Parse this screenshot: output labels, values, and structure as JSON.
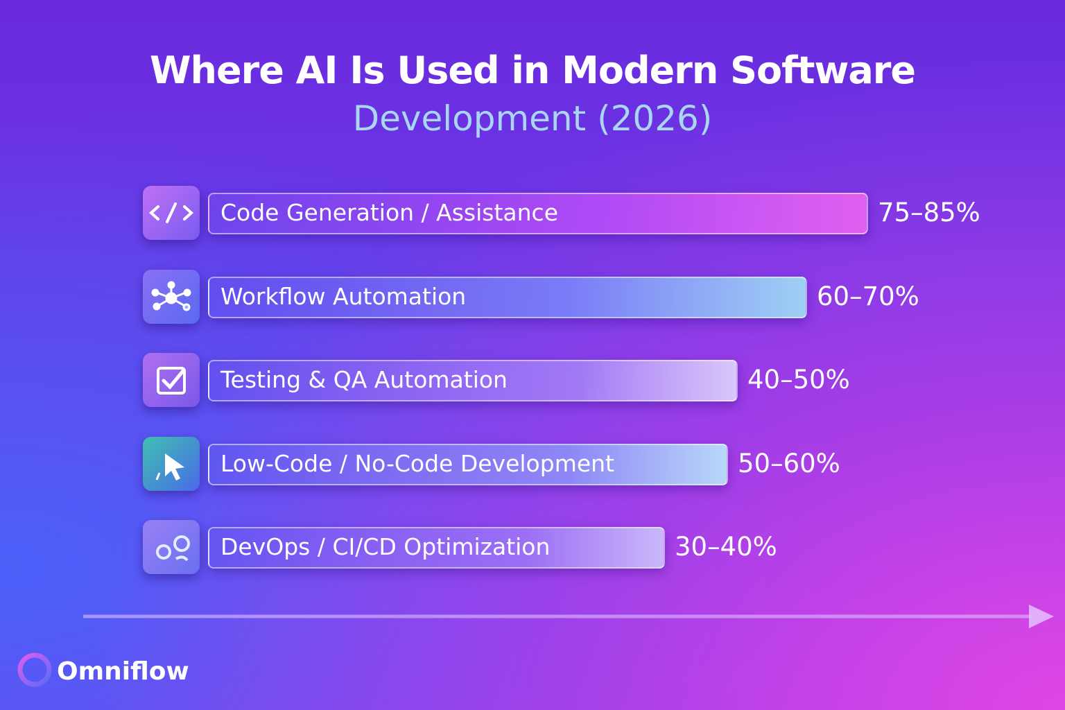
{
  "header": {
    "title": "Where AI Is Used in Modern Software",
    "subtitle": "Development (2026)"
  },
  "items": [
    {
      "label": "Code Generation / Assistance",
      "value": "75–85%"
    },
    {
      "label": "Workflow Automation",
      "value": "60–70%"
    },
    {
      "label": "Testing & QA Automation",
      "value": "40–50%"
    },
    {
      "label": "Low-Code / No-Code Development",
      "value": "50–60%"
    },
    {
      "label": "DevOps / CI/CD Optimization",
      "value": "30–40%"
    }
  ],
  "brand": "Omniflow"
}
